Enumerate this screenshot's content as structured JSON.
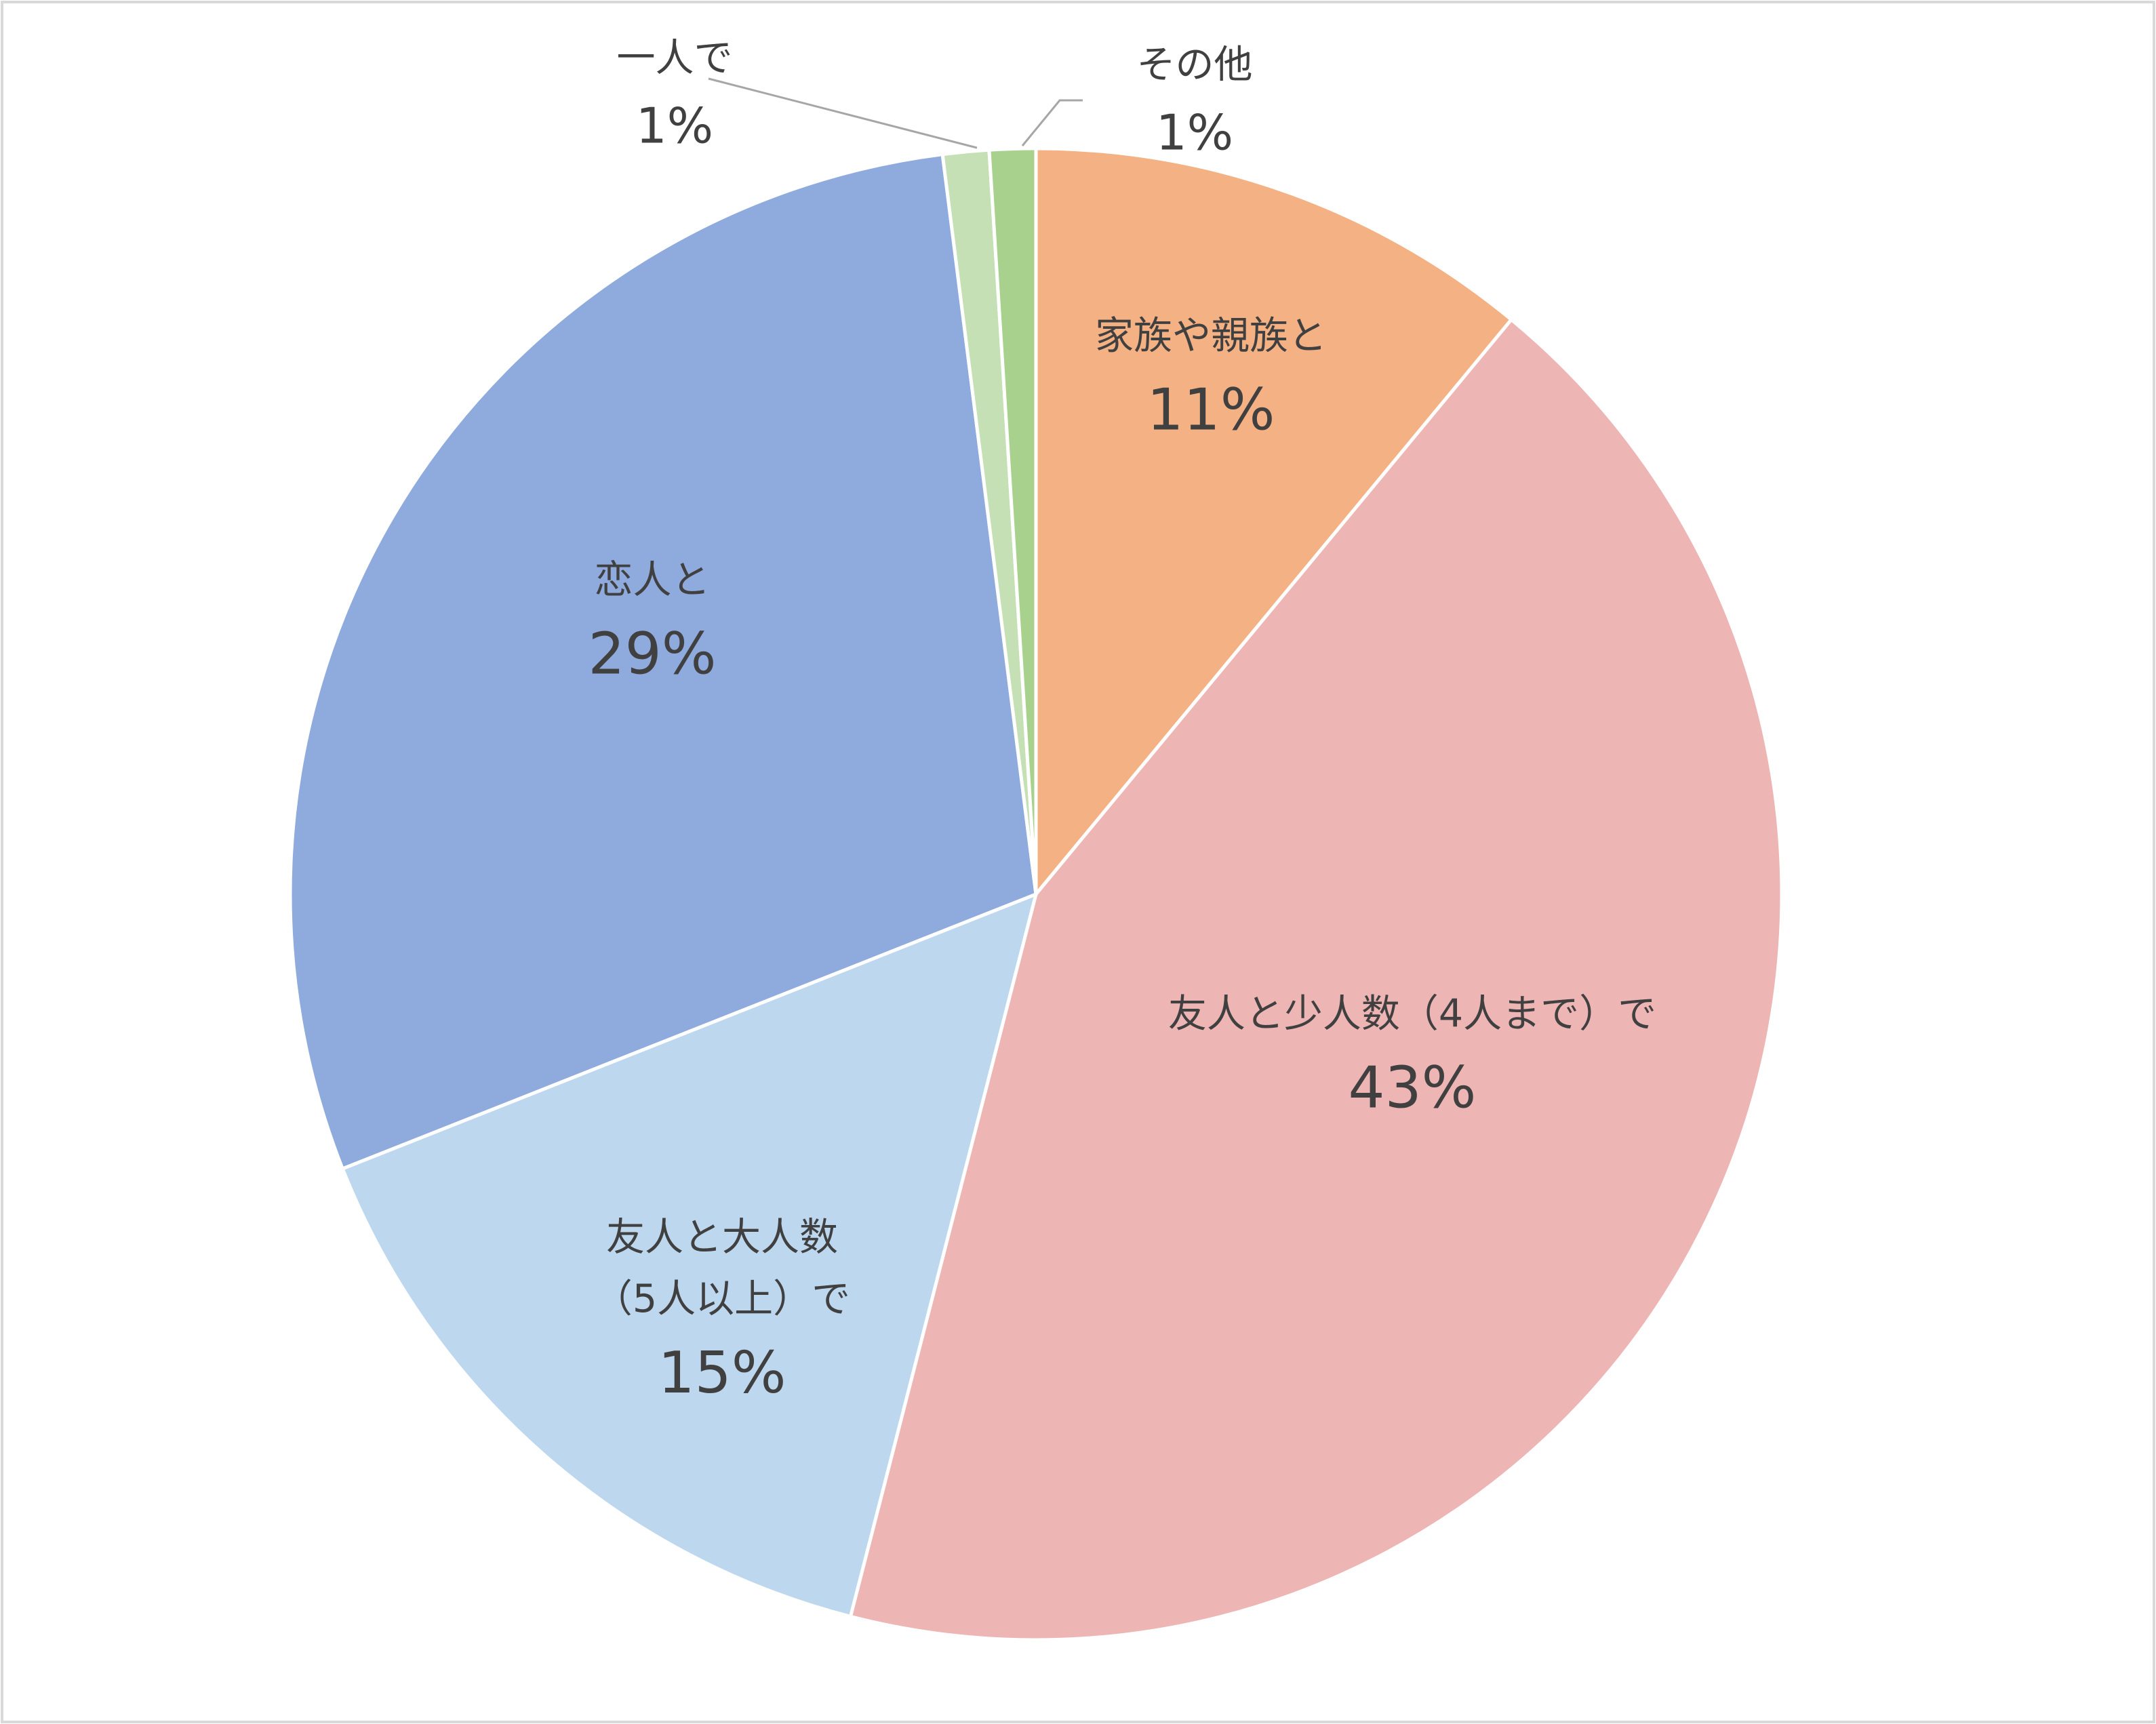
{
  "chart_data": {
    "type": "pie",
    "categories": [
      "家族や親族と",
      "友人と少人数（4人まで）で",
      "友人と大人数（5人以上）で",
      "恋人と",
      "一人で",
      "その他"
    ],
    "values": [
      11,
      43,
      15,
      29,
      1,
      1
    ],
    "value_labels": [
      "11%",
      "43%",
      "15%",
      "29%",
      "1%",
      "1%"
    ],
    "colors": [
      "#F4B183",
      "#EDB5B3",
      "#BDD7EE",
      "#8FAADC",
      "#C5E0B4",
      "#A9D18E"
    ]
  }
}
